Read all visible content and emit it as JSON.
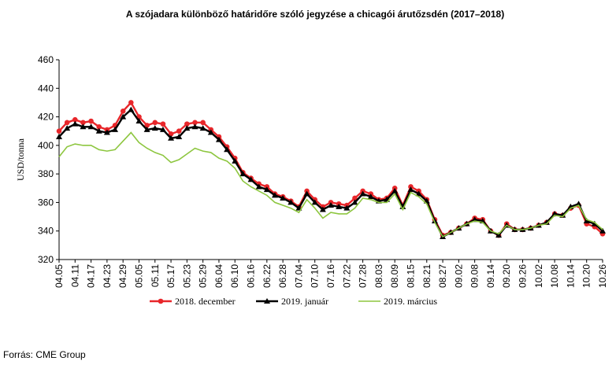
{
  "chart_data": {
    "type": "line",
    "title": "A szójadara különböző határidőre szóló jegyzése a chicagói árutőzsdén (2017–2018)",
    "y_label": "USD/tonna",
    "source": "Forrás: CME Group",
    "categories": [
      "04.05",
      null,
      "04.11",
      null,
      "04.17",
      null,
      "04.23",
      null,
      "04.29",
      null,
      "05.05",
      null,
      "05.11",
      null,
      "05.17",
      null,
      "05.23",
      null,
      "05.29",
      null,
      "06.04",
      null,
      "06.10",
      null,
      "06.16",
      null,
      "06.22",
      null,
      "06.28",
      null,
      "07.04",
      null,
      "07.10",
      null,
      "07.16",
      null,
      "07.22",
      null,
      "07.28",
      null,
      "08.03",
      null,
      "08.09",
      null,
      "08.15",
      null,
      "08.21",
      null,
      "08.27",
      null,
      "09.02",
      null,
      "09.08",
      null,
      "09.14",
      null,
      "09.20",
      null,
      "09.26",
      null,
      "10.02",
      null,
      "10.08",
      null,
      "10.14",
      null,
      "10.20",
      null,
      "10.26"
    ],
    "series": [
      {
        "name": "2018. december",
        "color": "#e8262a",
        "marker": "circle",
        "values": [
          410,
          416,
          418,
          416,
          417,
          413,
          411,
          414,
          424,
          430,
          420,
          414,
          416,
          415,
          408,
          410,
          415,
          416,
          416,
          411,
          406,
          399,
          391,
          381,
          377,
          373,
          371,
          366,
          364,
          361,
          357,
          368,
          362,
          357,
          360,
          359,
          358,
          363,
          368,
          366,
          362,
          363,
          370,
          358,
          371,
          368,
          362,
          348,
          337,
          339,
          342,
          345,
          349,
          348,
          340,
          337,
          345,
          341,
          341,
          342,
          344,
          346,
          352,
          351,
          356,
          358,
          345,
          343,
          338
        ]
      },
      {
        "name": "2019. január",
        "color": "#000000",
        "marker": "triangle",
        "values": [
          406,
          412,
          415,
          413,
          413,
          410,
          409,
          411,
          420,
          425,
          417,
          411,
          412,
          411,
          405,
          406,
          412,
          413,
          412,
          409,
          404,
          397,
          389,
          380,
          376,
          371,
          369,
          365,
          363,
          360,
          356,
          366,
          360,
          355,
          358,
          357,
          356,
          360,
          366,
          364,
          361,
          362,
          368,
          357,
          369,
          366,
          361,
          347,
          336,
          339,
          342,
          345,
          348,
          347,
          340,
          337,
          344,
          341,
          341,
          342,
          344,
          346,
          352,
          351,
          357,
          359,
          347,
          345,
          340
        ]
      },
      {
        "name": "2019. március",
        "color": "#8dc63f",
        "marker": "none",
        "values": [
          392,
          399,
          401,
          400,
          400,
          397,
          396,
          397,
          403,
          409,
          402,
          398,
          395,
          393,
          388,
          390,
          394,
          398,
          396,
          395,
          391,
          389,
          384,
          375,
          371,
          368,
          365,
          360,
          358,
          356,
          353,
          362,
          356,
          349,
          353,
          352,
          352,
          356,
          363,
          362,
          360,
          360,
          366,
          355,
          367,
          364,
          359,
          346,
          336,
          339,
          342,
          345,
          347,
          346,
          340,
          338,
          344,
          341,
          341,
          342,
          344,
          345,
          351,
          350,
          356,
          358,
          348,
          346,
          341
        ]
      }
    ],
    "ylim": [
      320,
      460
    ],
    "yticks": [
      320,
      340,
      360,
      380,
      400,
      420,
      440,
      460
    ],
    "grid": false
  }
}
